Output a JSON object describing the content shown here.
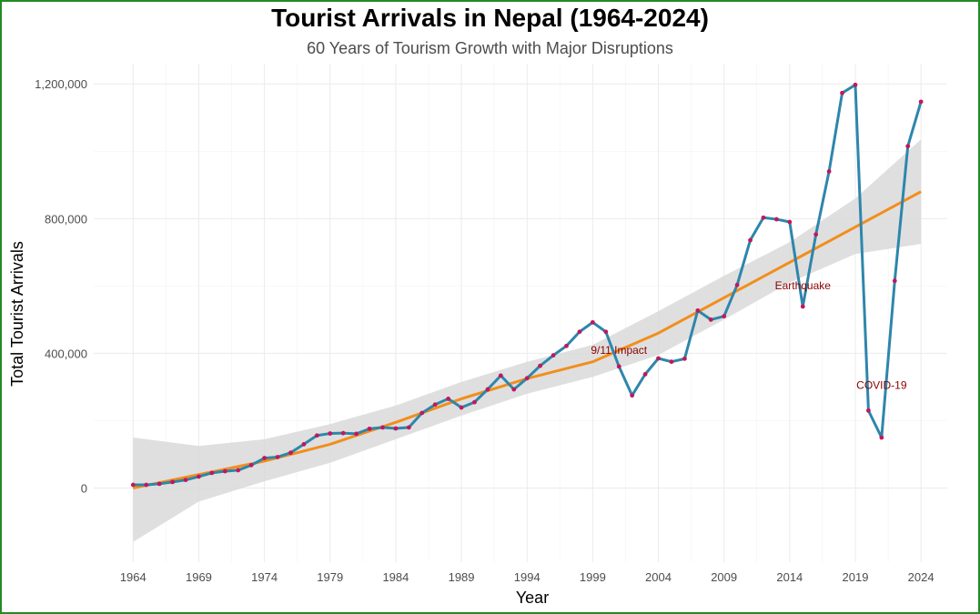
{
  "chart_data": {
    "type": "line",
    "title": "Tourist Arrivals in Nepal (1964-2024)",
    "subtitle": "60 Years of Tourism Growth with Major Disruptions",
    "xlabel": "Year",
    "ylabel": "Total Tourist Arrivals",
    "xlim": [
      1961,
      2026
    ],
    "ylim": [
      -220000,
      1260000
    ],
    "x_ticks": [
      1964,
      1969,
      1974,
      1979,
      1984,
      1989,
      1994,
      1999,
      2004,
      2009,
      2014,
      2019,
      2024
    ],
    "y_ticks": [
      0,
      400000,
      800000,
      1200000
    ],
    "y_tick_labels": [
      "0",
      "400,000",
      "800,000",
      "1,200,000"
    ],
    "grid": true,
    "legend": "none",
    "series": [
      {
        "kind": "line-with-points",
        "line_color": "#2e86ab",
        "point_color": "#c2185b",
        "points": [
          [
            1964,
            9500
          ],
          [
            1965,
            9400
          ],
          [
            1966,
            12600
          ],
          [
            1967,
            18000
          ],
          [
            1968,
            24000
          ],
          [
            1969,
            34000
          ],
          [
            1970,
            45000
          ],
          [
            1971,
            50000
          ],
          [
            1972,
            53000
          ],
          [
            1973,
            68000
          ],
          [
            1974,
            89000
          ],
          [
            1975,
            92000
          ],
          [
            1976,
            105000
          ],
          [
            1977,
            130000
          ],
          [
            1978,
            156000
          ],
          [
            1979,
            162000
          ],
          [
            1980,
            163000
          ],
          [
            1981,
            161000
          ],
          [
            1982,
            176000
          ],
          [
            1983,
            180000
          ],
          [
            1984,
            177000
          ],
          [
            1985,
            180000
          ],
          [
            1986,
            223000
          ],
          [
            1987,
            248000
          ],
          [
            1988,
            265000
          ],
          [
            1989,
            239000
          ],
          [
            1990,
            255000
          ],
          [
            1991,
            293000
          ],
          [
            1992,
            334000
          ],
          [
            1993,
            293000
          ],
          [
            1994,
            326000
          ],
          [
            1995,
            363000
          ],
          [
            1996,
            394000
          ],
          [
            1997,
            422000
          ],
          [
            1998,
            464000
          ],
          [
            1999,
            492000
          ],
          [
            2000,
            464000
          ],
          [
            2001,
            361000
          ],
          [
            2002,
            275000
          ],
          [
            2003,
            338000
          ],
          [
            2004,
            385000
          ],
          [
            2005,
            375000
          ],
          [
            2006,
            384000
          ],
          [
            2007,
            527000
          ],
          [
            2008,
            500000
          ],
          [
            2009,
            510000
          ],
          [
            2010,
            603000
          ],
          [
            2011,
            736000
          ],
          [
            2012,
            803000
          ],
          [
            2013,
            798000
          ],
          [
            2014,
            790000
          ],
          [
            2015,
            539000
          ],
          [
            2016,
            753000
          ],
          [
            2017,
            940000
          ],
          [
            2018,
            1173000
          ],
          [
            2019,
            1197000
          ],
          [
            2020,
            230000
          ],
          [
            2021,
            150000
          ],
          [
            2022,
            615000
          ],
          [
            2023,
            1015000
          ],
          [
            2024,
            1147000
          ]
        ]
      },
      {
        "kind": "trend",
        "line_color": "#f28e1c",
        "band_color": "#d9d9d9",
        "points": [
          [
            1964,
            0
          ],
          [
            1969,
            40000
          ],
          [
            1974,
            80000
          ],
          [
            1979,
            130000
          ],
          [
            1984,
            195000
          ],
          [
            1989,
            265000
          ],
          [
            1994,
            325000
          ],
          [
            1999,
            375000
          ],
          [
            2004,
            460000
          ],
          [
            2009,
            565000
          ],
          [
            2014,
            670000
          ],
          [
            2019,
            775000
          ],
          [
            2024,
            880000
          ]
        ],
        "band_lower": [
          [
            1964,
            -160000
          ],
          [
            1969,
            -40000
          ],
          [
            1974,
            20000
          ],
          [
            1979,
            75000
          ],
          [
            1984,
            145000
          ],
          [
            1989,
            215000
          ],
          [
            1994,
            280000
          ],
          [
            1999,
            330000
          ],
          [
            2004,
            395000
          ],
          [
            2009,
            500000
          ],
          [
            2014,
            610000
          ],
          [
            2019,
            695000
          ],
          [
            2024,
            725000
          ]
        ],
        "band_upper": [
          [
            1964,
            150000
          ],
          [
            1969,
            125000
          ],
          [
            1974,
            145000
          ],
          [
            1979,
            190000
          ],
          [
            1984,
            245000
          ],
          [
            1989,
            315000
          ],
          [
            1994,
            375000
          ],
          [
            1999,
            425000
          ],
          [
            2004,
            525000
          ],
          [
            2009,
            630000
          ],
          [
            2014,
            730000
          ],
          [
            2019,
            860000
          ],
          [
            2024,
            1035000
          ]
        ]
      }
    ],
    "annotations": [
      {
        "text": "9/11 Impact",
        "x": 2001,
        "y": 398000
      },
      {
        "text": "Earthquake",
        "x": 2015,
        "y": 590000
      },
      {
        "text": "COVID-19",
        "x": 2021,
        "y": 295000
      }
    ]
  }
}
